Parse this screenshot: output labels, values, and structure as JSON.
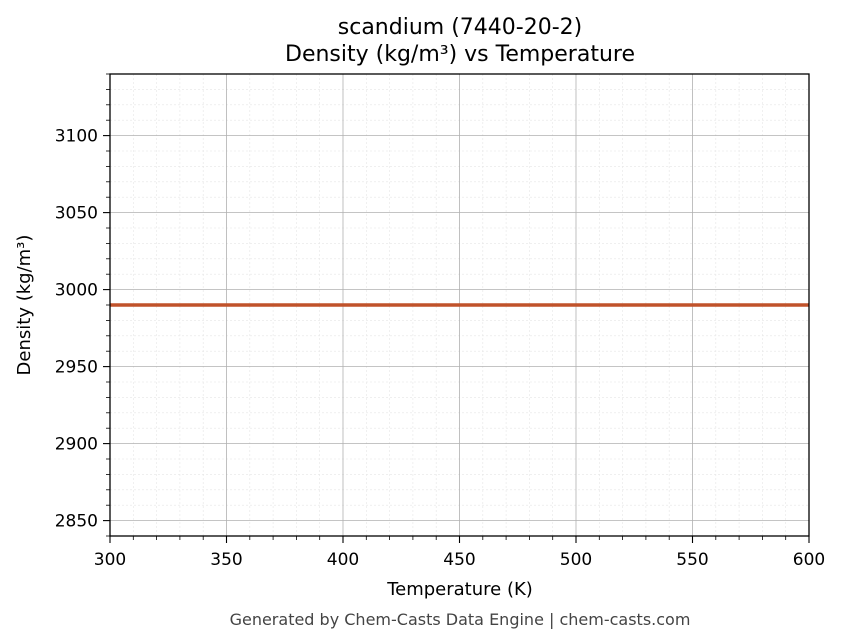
{
  "chart_data": {
    "type": "line",
    "title_line1": "scandium (7440-20-2)",
    "title_line2": "Density (kg/m³) vs Temperature",
    "xlabel": "Temperature (K)",
    "ylabel": "Density (kg/m³)",
    "xlim": [
      300,
      600
    ],
    "ylim": [
      2840,
      3140
    ],
    "x_ticks": [
      300,
      350,
      400,
      450,
      500,
      550,
      600
    ],
    "y_ticks": [
      2850,
      2900,
      2950,
      3000,
      3050,
      3100
    ],
    "x_minor_step": 10,
    "y_minor_step": 10,
    "grid": true,
    "series": [
      {
        "color": "#c0522a",
        "x": [
          300,
          600
        ],
        "y": [
          2990,
          2990
        ]
      }
    ],
    "footer": "Generated by Chem-Casts Data Engine | chem-casts.com"
  }
}
